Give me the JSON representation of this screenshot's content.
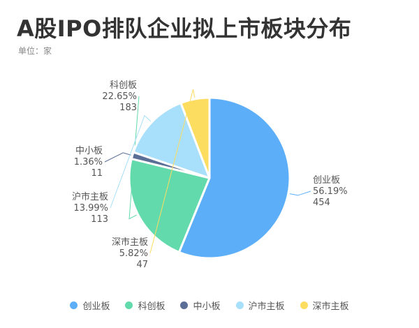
{
  "title": "A股IPO排队企业拟上市板块分布",
  "subtitle": "单位：家",
  "chart_data": {
    "type": "pie",
    "title": "A股IPO排队企业拟上市板块分布",
    "unit": "家",
    "legend_position": "bottom",
    "slices": [
      {
        "name": "创业板",
        "value": 454,
        "percent": "56.19%",
        "color": "#5BAEF7"
      },
      {
        "name": "科创板",
        "value": 183,
        "percent": "22.65%",
        "color": "#62DAAB"
      },
      {
        "name": "中小板",
        "value": 11,
        "percent": "1.36%",
        "color": "#5B6E96"
      },
      {
        "name": "沪市主板",
        "value": 113,
        "percent": "13.99%",
        "color": "#A8DFFA"
      },
      {
        "name": "深市主板",
        "value": 47,
        "percent": "5.82%",
        "color": "#FDDD60"
      }
    ]
  }
}
